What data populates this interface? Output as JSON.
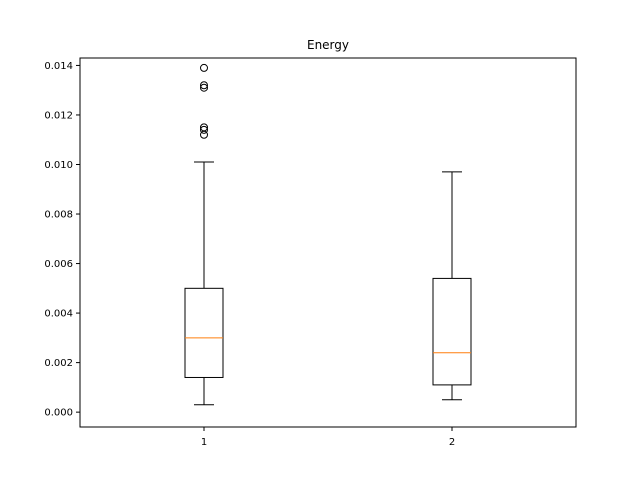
{
  "chart_data": {
    "type": "box",
    "title": "Energy",
    "xlabel": "",
    "ylabel": "",
    "categories": [
      "1",
      "2"
    ],
    "ylim": [
      -0.0006,
      0.0143
    ],
    "yticks": [
      0.0,
      0.002,
      0.004,
      0.006,
      0.008,
      0.01,
      0.012,
      0.014
    ],
    "ytick_labels": [
      "0.000",
      "0.002",
      "0.004",
      "0.006",
      "0.008",
      "0.010",
      "0.012",
      "0.014"
    ],
    "boxes": [
      {
        "label": "1",
        "whisker_low": 0.0003,
        "q1": 0.0014,
        "median": 0.003,
        "q3": 0.005,
        "whisker_high": 0.0101,
        "outliers": [
          0.0112,
          0.0114,
          0.0115,
          0.0131,
          0.0132,
          0.0139
        ]
      },
      {
        "label": "2",
        "whisker_low": 0.0005,
        "q1": 0.0011,
        "median": 0.0024,
        "q3": 0.0054,
        "whisker_high": 0.0097,
        "outliers": []
      }
    ],
    "grid": false,
    "colors": {
      "box": "#000000",
      "median": "#ff7f0e",
      "outlier": "#000000"
    }
  }
}
